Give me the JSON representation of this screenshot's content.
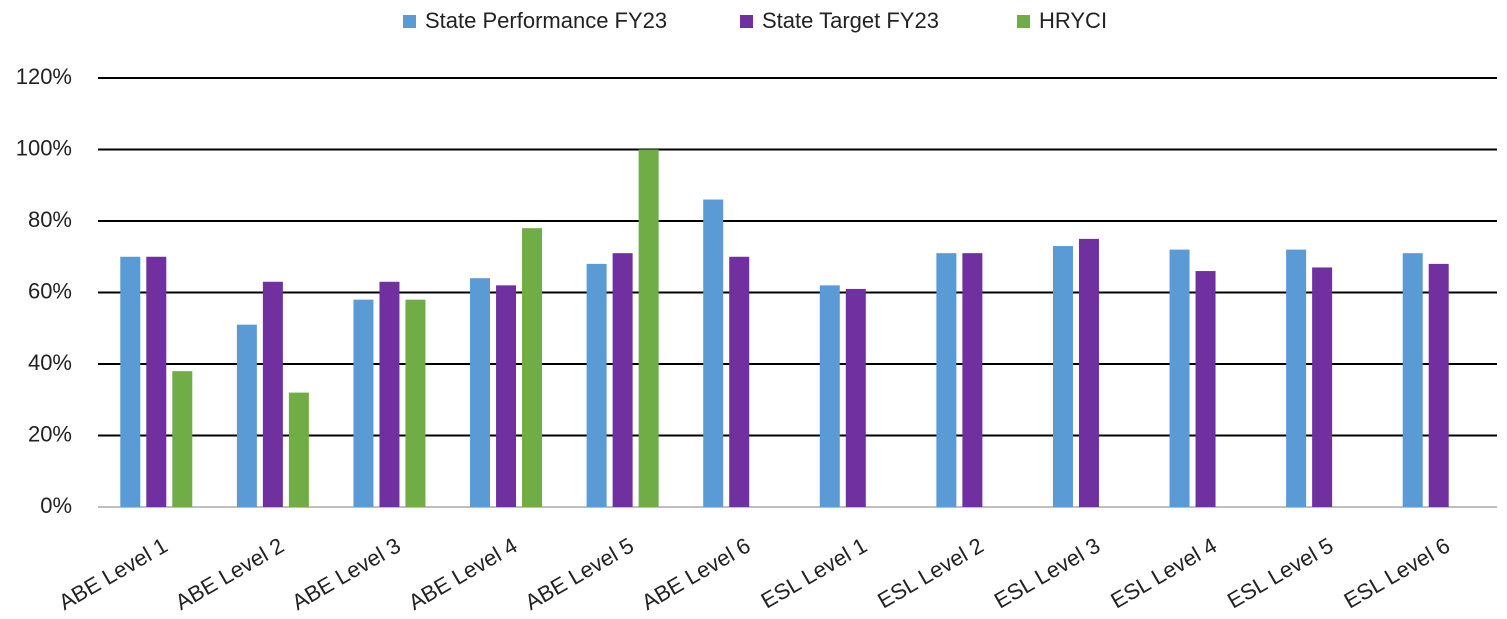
{
  "chart_data": {
    "type": "bar",
    "categories": [
      "ABE Level 1",
      "ABE Level 2",
      "ABE Level 3",
      "ABE Level 4",
      "ABE Level 5",
      "ABE Level 6",
      "ESL Level 1",
      "ESL Level 2",
      "ESL Level 3",
      "ESL Level 4",
      "ESL Level 5",
      "ESL Level 6"
    ],
    "series": [
      {
        "name": "State Performance FY23",
        "color": "#5b9bd5",
        "values": [
          70,
          51,
          58,
          64,
          68,
          86,
          62,
          71,
          73,
          72,
          72,
          71
        ]
      },
      {
        "name": "State Target FY23",
        "color": "#7030a0",
        "values": [
          70,
          63,
          63,
          62,
          71,
          70,
          61,
          71,
          75,
          66,
          67,
          68
        ]
      },
      {
        "name": "HRYCI",
        "color": "#70ad47",
        "values": [
          38,
          32,
          58,
          78,
          100,
          null,
          null,
          null,
          null,
          null,
          null,
          null
        ]
      }
    ],
    "ylim": [
      0,
      120
    ],
    "yticks": [
      {
        "value": 0,
        "label": "0%"
      },
      {
        "value": 20,
        "label": "20%"
      },
      {
        "value": 40,
        "label": "40%"
      },
      {
        "value": 60,
        "label": "60%"
      },
      {
        "value": 80,
        "label": "80%"
      },
      {
        "value": 100,
        "label": "100%"
      },
      {
        "value": 120,
        "label": "120%"
      }
    ],
    "grid": true,
    "legend": "top"
  }
}
